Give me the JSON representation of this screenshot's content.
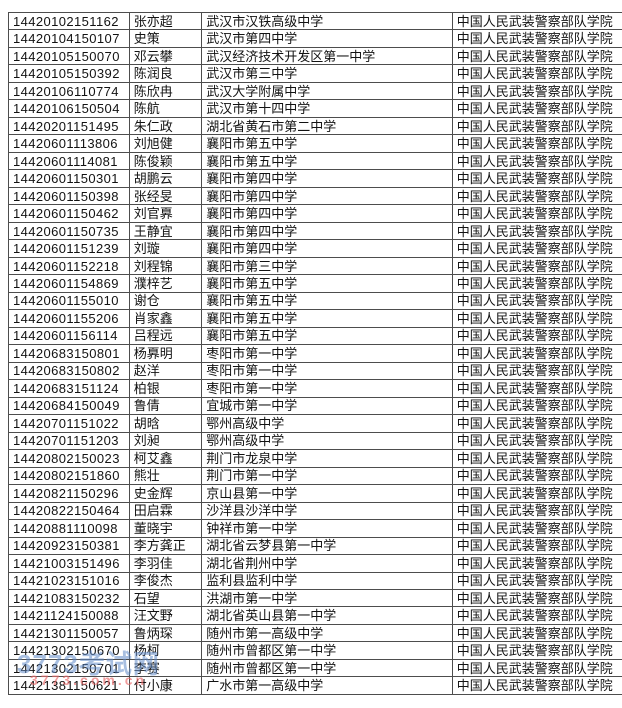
{
  "watermark": {
    "title": "3773考试网",
    "domain": "3773.com.cn"
  },
  "colors": {
    "table_border": "#4d4d4d",
    "text": "#121212",
    "watermark_blue": "#608ac8",
    "watermark_red": "#e96969"
  },
  "table": {
    "rows": [
      {
        "id": "14420102151162",
        "name": "张亦超",
        "school": "武汉市汉铁高级中学",
        "college": "中国人民武装警察部队学院"
      },
      {
        "id": "14420104150107",
        "name": "史策",
        "school": "武汉市第四中学",
        "college": "中国人民武装警察部队学院"
      },
      {
        "id": "14420105150070",
        "name": "邓云攀",
        "school": "武汉经济技术开发区第一中学",
        "college": "中国人民武装警察部队学院"
      },
      {
        "id": "14420105150392",
        "name": "陈润良",
        "school": "武汉市第三中学",
        "college": "中国人民武装警察部队学院"
      },
      {
        "id": "14420106110774",
        "name": "陈欣冉",
        "school": "武汉大学附属中学",
        "college": "中国人民武装警察部队学院"
      },
      {
        "id": "14420106150504",
        "name": "陈航",
        "school": "武汉市第十四中学",
        "college": "中国人民武装警察部队学院"
      },
      {
        "id": "14420201151495",
        "name": "朱仁政",
        "school": "湖北省黄石市第二中学",
        "college": "中国人民武装警察部队学院"
      },
      {
        "id": "14420601113806",
        "name": "刘旭健",
        "school": "襄阳市第五中学",
        "college": "中国人民武装警察部队学院"
      },
      {
        "id": "14420601114081",
        "name": "陈俊颖",
        "school": "襄阳市第五中学",
        "college": "中国人民武装警察部队学院"
      },
      {
        "id": "14420601150301",
        "name": "胡鹏云",
        "school": "襄阳市第四中学",
        "college": "中国人民武装警察部队学院"
      },
      {
        "id": "14420601150398",
        "name": "张经旻",
        "school": "襄阳市第四中学",
        "college": "中国人民武装警察部队学院"
      },
      {
        "id": "14420601150462",
        "name": "刘官奡",
        "school": "襄阳市第四中学",
        "college": "中国人民武装警察部队学院"
      },
      {
        "id": "14420601150735",
        "name": "王静宜",
        "school": "襄阳市第四中学",
        "college": "中国人民武装警察部队学院"
      },
      {
        "id": "14420601151239",
        "name": "刘璇",
        "school": "襄阳市第四中学",
        "college": "中国人民武装警察部队学院"
      },
      {
        "id": "14420601152218",
        "name": "刘程锦",
        "school": "襄阳市第三中学",
        "college": "中国人民武装警察部队学院"
      },
      {
        "id": "14420601154869",
        "name": "濮梓艺",
        "school": "襄阳市第五中学",
        "college": "中国人民武装警察部队学院"
      },
      {
        "id": "14420601155010",
        "name": "谢仓",
        "school": "襄阳市第五中学",
        "college": "中国人民武装警察部队学院"
      },
      {
        "id": "14420601155206",
        "name": "肖家鑫",
        "school": "襄阳市第五中学",
        "college": "中国人民武装警察部队学院"
      },
      {
        "id": "14420601156114",
        "name": "吕程远",
        "school": "襄阳市第五中学",
        "college": "中国人民武装警察部队学院"
      },
      {
        "id": "14420683150801",
        "name": "杨奡明",
        "school": "枣阳市第一中学",
        "college": "中国人民武装警察部队学院"
      },
      {
        "id": "14420683150802",
        "name": "赵洋",
        "school": "枣阳市第一中学",
        "college": "中国人民武装警察部队学院"
      },
      {
        "id": "14420683151124",
        "name": "柏银",
        "school": "枣阳市第一中学",
        "college": "中国人民武装警察部队学院"
      },
      {
        "id": "14420684150049",
        "name": "鲁倩",
        "school": "宜城市第一中学",
        "college": "中国人民武装警察部队学院"
      },
      {
        "id": "14420701151022",
        "name": "胡晗",
        "school": "鄂州高级中学",
        "college": "中国人民武装警察部队学院"
      },
      {
        "id": "14420701151203",
        "name": "刘昶",
        "school": "鄂州高级中学",
        "college": "中国人民武装警察部队学院"
      },
      {
        "id": "14420802150023",
        "name": "柯艾鑫",
        "school": "荆门市龙泉中学",
        "college": "中国人民武装警察部队学院"
      },
      {
        "id": "14420802151860",
        "name": "熊壮",
        "school": "荆门市第一中学",
        "college": "中国人民武装警察部队学院"
      },
      {
        "id": "14420821150296",
        "name": "史金辉",
        "school": "京山县第一中学",
        "college": "中国人民武装警察部队学院"
      },
      {
        "id": "14420822150464",
        "name": "田启霖",
        "school": "沙洋县沙洋中学",
        "college": "中国人民武装警察部队学院"
      },
      {
        "id": "14420881110098",
        "name": "董晓宇",
        "school": "钟祥市第一中学",
        "college": "中国人民武装警察部队学院"
      },
      {
        "id": "14420923150381",
        "name": "李方龚正",
        "school": "湖北省云梦县第一中学",
        "college": "中国人民武装警察部队学院"
      },
      {
        "id": "14421003151496",
        "name": "李羽佳",
        "school": "湖北省荆州中学",
        "college": "中国人民武装警察部队学院"
      },
      {
        "id": "14421023151016",
        "name": "李俊杰",
        "school": "监利县监利中学",
        "college": "中国人民武装警察部队学院"
      },
      {
        "id": "14421083150232",
        "name": "石望",
        "school": "洪湖市第一中学",
        "college": "中国人民武装警察部队学院"
      },
      {
        "id": "14421124150088",
        "name": "汪文野",
        "school": "湖北省英山县第一中学",
        "college": "中国人民武装警察部队学院"
      },
      {
        "id": "14421301150057",
        "name": "鲁炳琛",
        "school": "随州市第一高级中学",
        "college": "中国人民武装警察部队学院"
      },
      {
        "id": "14421302150670",
        "name": "杨柯",
        "school": "随州市曾都区第一中学",
        "college": "中国人民武装警察部队学院"
      },
      {
        "id": "14421302150701",
        "name": "李赛",
        "school": "随州市曾都区第一中学",
        "college": "中国人民武装警察部队学院"
      },
      {
        "id": "14421381150621",
        "name": "付小康",
        "school": "广水市第一高级中学",
        "college": "中国人民武装警察部队学院"
      }
    ]
  }
}
